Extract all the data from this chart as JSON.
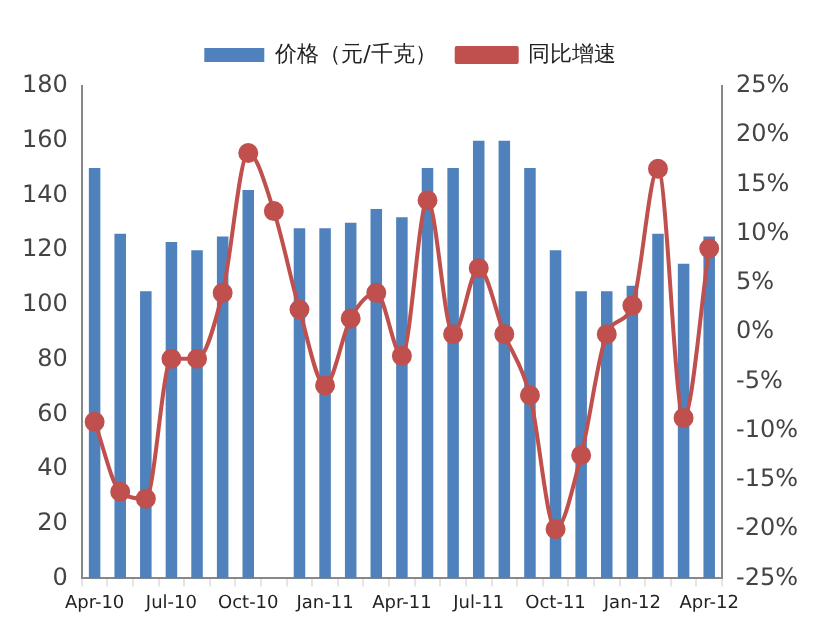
{
  "chart_data": {
    "type": "bar",
    "categories": [
      "Apr-10",
      null,
      null,
      "Jul-10",
      null,
      null,
      "Oct-10",
      null,
      null,
      "Jan-11",
      null,
      null,
      "Apr-11",
      null,
      null,
      "Jul-11",
      null,
      null,
      "Oct-11",
      null,
      null,
      "Jan-12",
      null,
      null,
      "Apr-12"
    ],
    "series": [
      {
        "name": "价格（元/千克）",
        "color": "#4f81bd",
        "values": [
          150,
          126,
          105,
          123,
          120,
          125,
          142,
          null,
          128,
          128,
          130,
          135,
          132,
          150,
          150,
          160,
          160,
          150,
          120,
          105,
          105,
          107,
          126,
          115,
          125
        ]
      },
      {
        "name": "同比增速",
        "type": "line",
        "axis": "y2",
        "color": "#c0504d",
        "values": [
          -9.1,
          -16.2,
          -16.9,
          -2.7,
          -2.7,
          4.0,
          18.2,
          12.3,
          2.3,
          -5.4,
          1.4,
          4.0,
          -2.4,
          13.4,
          -0.2,
          6.5,
          -0.2,
          -6.4,
          -20,
          -12.5,
          -0.2,
          2.7,
          16.6,
          -8.7,
          8.5
        ]
      }
    ],
    "ylim": [
      0,
      180
    ],
    "yticks": [
      0,
      20,
      40,
      60,
      80,
      100,
      120,
      140,
      160,
      180
    ],
    "y2lim": [
      -25,
      25
    ],
    "y2ticks": [
      {
        "value": -25,
        "label": "-25%"
      },
      {
        "value": -20,
        "label": "-20%"
      },
      {
        "value": -15,
        "label": "-15%"
      },
      {
        "value": -10,
        "label": "-10%"
      },
      {
        "value": -5,
        "label": "-5%"
      },
      {
        "value": 0,
        "label": "0%"
      },
      {
        "value": 5,
        "label": "5%"
      },
      {
        "value": 10,
        "label": "10%"
      },
      {
        "value": 15,
        "label": "15%"
      },
      {
        "value": 20,
        "label": "20%"
      },
      {
        "value": 25,
        "label": "25%"
      }
    ],
    "marker": "circle",
    "legend": "top",
    "grid": false
  }
}
